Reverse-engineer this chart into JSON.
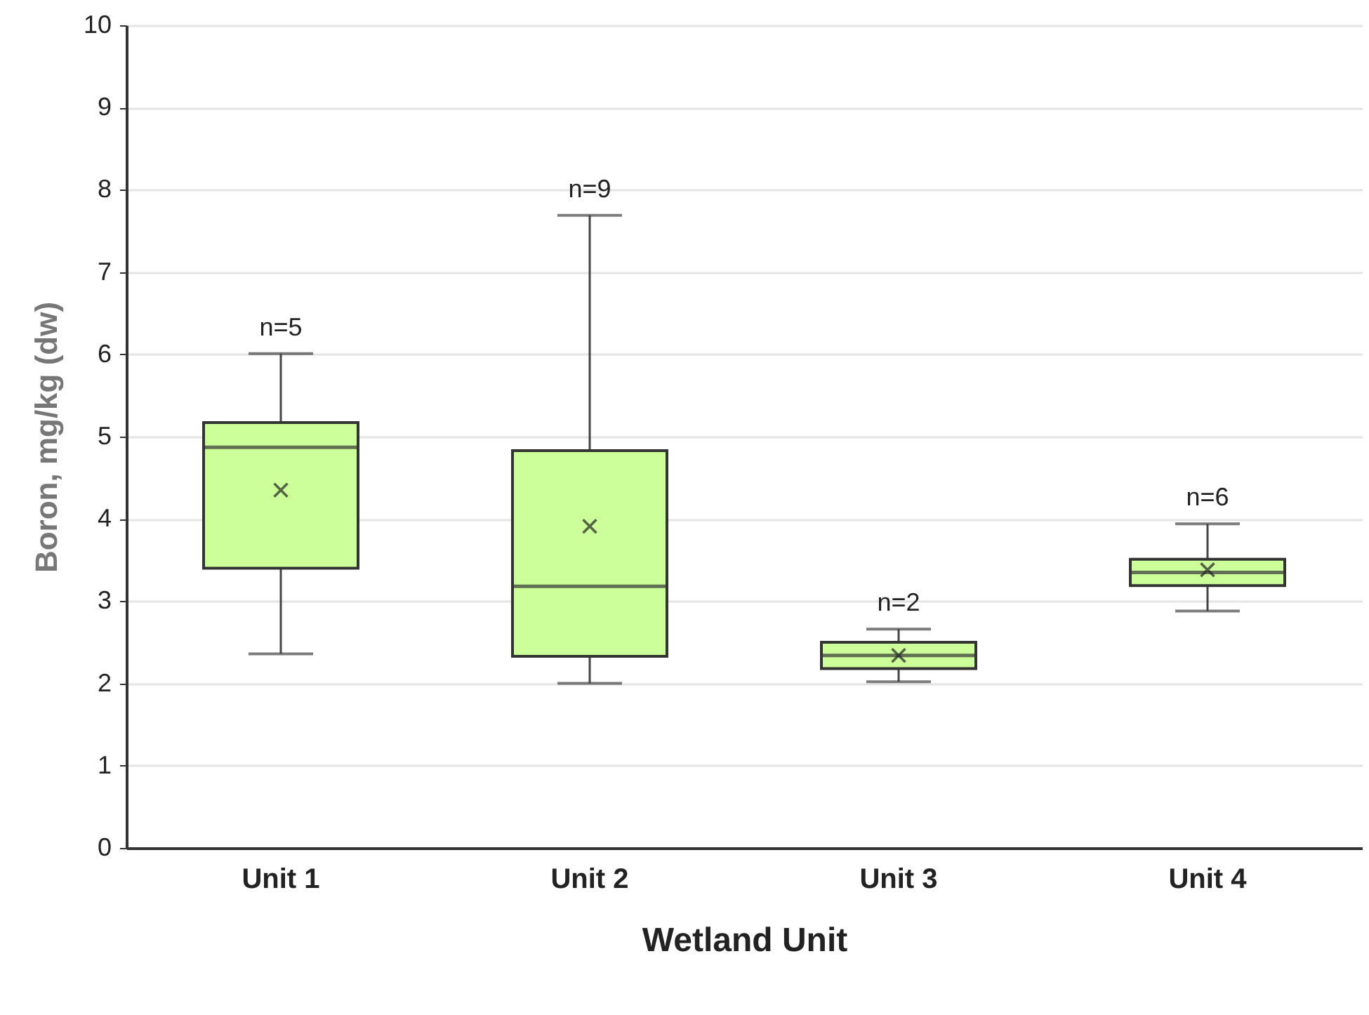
{
  "chart_data": {
    "type": "box",
    "xlabel": "Wetland Unit",
    "ylabel": "Boron, mg/kg (dw)",
    "categories": [
      "Unit 1",
      "Unit 2",
      "Unit 3",
      "Unit 4"
    ],
    "boxes": [
      {
        "low": 2.36,
        "q1": 3.4,
        "median": 4.87,
        "q3": 5.17,
        "high": 6.01,
        "mean": 4.35
      },
      {
        "low": 2.0,
        "q1": 2.33,
        "median": 3.18,
        "q3": 4.83,
        "high": 7.69,
        "mean": 3.91
      },
      {
        "low": 2.02,
        "q1": 2.18,
        "median": 2.34,
        "q3": 2.5,
        "high": 2.66,
        "mean": 2.34
      },
      {
        "low": 2.88,
        "q1": 3.19,
        "median": 3.35,
        "q3": 3.51,
        "high": 3.94,
        "mean": 3.38
      }
    ],
    "color": "#ccff99",
    "ylim": [
      0,
      10
    ],
    "yticks": [
      0,
      1,
      2,
      3,
      4,
      5,
      6,
      7,
      8,
      9,
      10
    ],
    "grid": "y",
    "annotations": [
      {
        "text": "n=5",
        "x": "Unit 1",
        "y": 6.01
      },
      {
        "text": "n=9",
        "x": "Unit 2",
        "y": 7.69
      },
      {
        "text": "n=2",
        "x": "Unit 3",
        "y": 2.66
      },
      {
        "text": "n=6",
        "x": "Unit 4",
        "y": 3.94
      }
    ]
  }
}
